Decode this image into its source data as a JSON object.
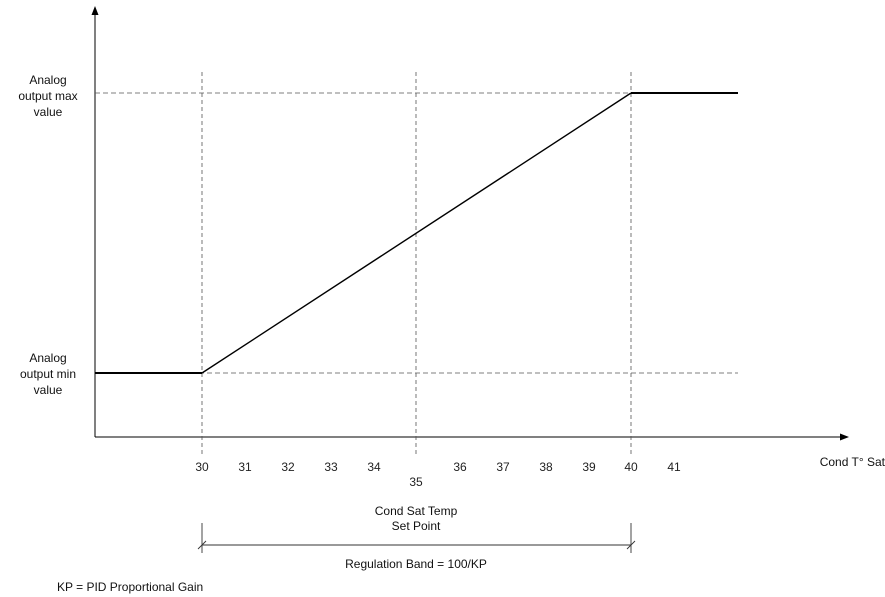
{
  "diagram": {
    "y_labels": {
      "max": [
        "Analog",
        "output max",
        "value"
      ],
      "min": [
        "Analog",
        "output min",
        "value"
      ]
    },
    "x_axis_label": "Cond T° Sat",
    "x_ticks": [
      "30",
      "31",
      "32",
      "33",
      "34",
      "35",
      "36",
      "37",
      "38",
      "39",
      "40",
      "41"
    ],
    "setpoint_label": [
      "Cond Sat Temp",
      "Set Point"
    ],
    "band_label": "Regulation Band = 100/KP",
    "footnote": "KP = PID Proportional Gain",
    "colors": {
      "line": "#000000",
      "guide": "#555555",
      "text": "#111111"
    }
  }
}
